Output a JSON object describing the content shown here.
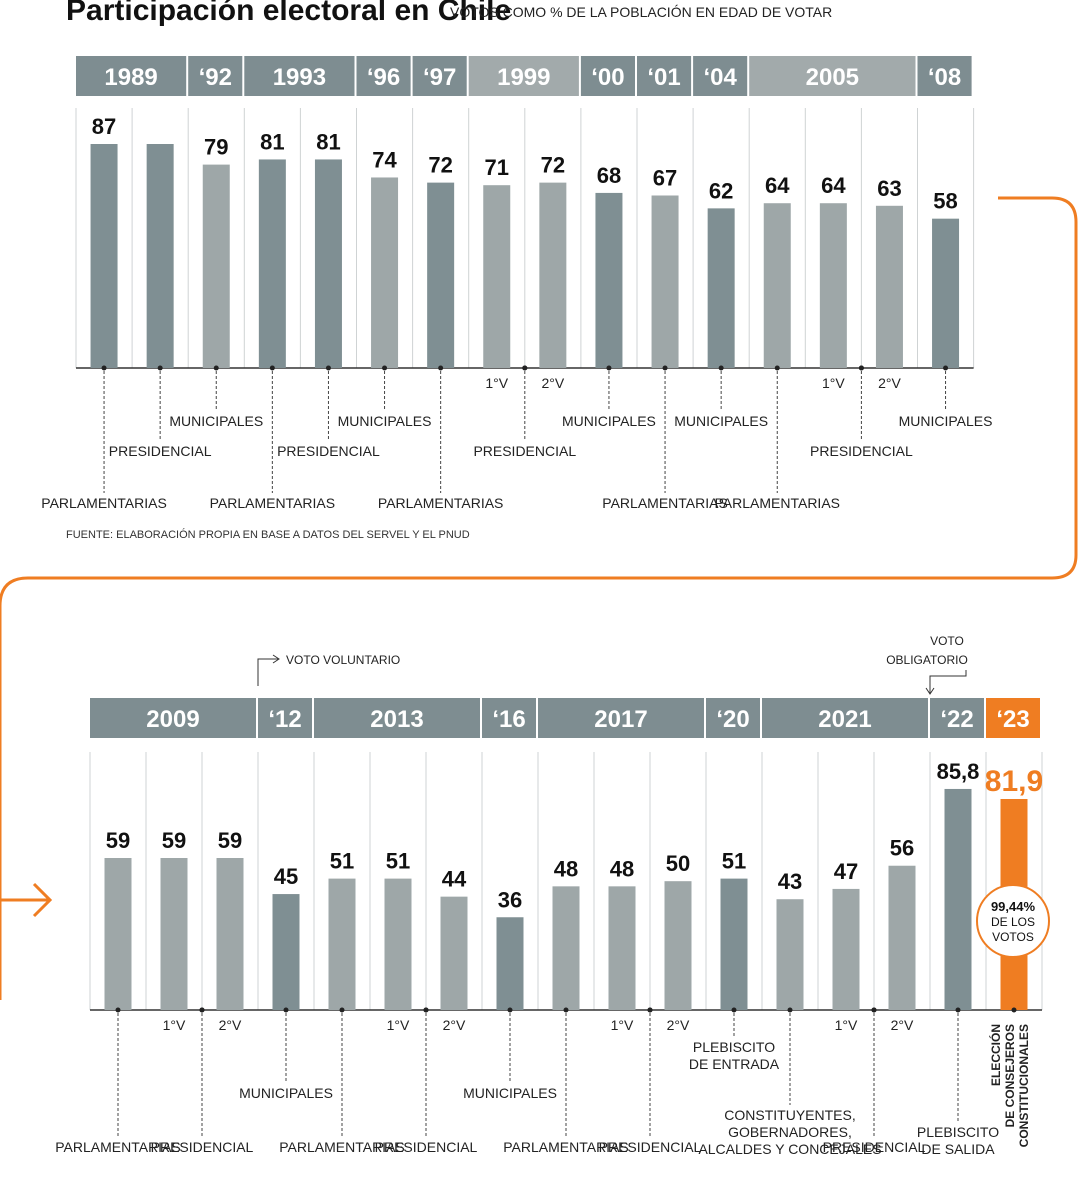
{
  "header": {
    "title": "Participación electoral en Chile",
    "subtitle": "VOTOS COMO % DE LA POBLACIÓN EN EDAD DE VOTAR"
  },
  "source": "FUENTE: ELABORACIÓN PROPIA EN BASE A DATOS DEL SERVEL Y EL PNUD",
  "notes": {
    "voto_voluntario": "VOTO VOLUNTARIO",
    "voto_obligatorio_1": "VOTO",
    "voto_obligatorio_2": "OBLIGATORIO",
    "circle_1": "99,44%",
    "circle_2": "DE LOS",
    "circle_3": "VOTOS"
  },
  "colors": {
    "bar_light": "#9ea7a8",
    "bar_dark": "#7f8f93",
    "year_light": "#a2aaab",
    "year_dark": "#7e8d91",
    "accent": "#ef7d22",
    "line": "#333333"
  },
  "chart_data": [
    {
      "type": "bar",
      "ylim": [
        0,
        100
      ],
      "years": [
        {
          "label": "1989",
          "span": [
            0,
            2
          ],
          "tone": "dark"
        },
        {
          "label": "‘92",
          "span": [
            2,
            3
          ],
          "tone": "dark"
        },
        {
          "label": "1993",
          "span": [
            3,
            5
          ],
          "tone": "dark"
        },
        {
          "label": "‘96",
          "span": [
            5,
            6
          ],
          "tone": "dark"
        },
        {
          "label": "‘97",
          "span": [
            6,
            7
          ],
          "tone": "dark"
        },
        {
          "label": "1999",
          "span": [
            7,
            9
          ],
          "tone": "light"
        },
        {
          "label": "‘00",
          "span": [
            9,
            10
          ],
          "tone": "dark"
        },
        {
          "label": "‘01",
          "span": [
            10,
            11
          ],
          "tone": "dark"
        },
        {
          "label": "‘04",
          "span": [
            11,
            12
          ],
          "tone": "dark"
        },
        {
          "label": "2005",
          "span": [
            12,
            15
          ],
          "tone": "light"
        },
        {
          "label": "‘08",
          "span": [
            15,
            16
          ],
          "tone": "dark"
        }
      ],
      "bars": [
        {
          "value": 87,
          "label": "87",
          "tone": "dark",
          "sub": "",
          "election": "PARLAMENTARIAS"
        },
        {
          "value": 87,
          "label": "",
          "tone": "dark",
          "sub": "",
          "election": "PRESIDENCIAL"
        },
        {
          "value": 79,
          "label": "79",
          "tone": "light",
          "sub": "",
          "election": "MUNICIPALES"
        },
        {
          "value": 81,
          "label": "81",
          "tone": "dark",
          "sub": "",
          "election": "PARLAMENTARIAS"
        },
        {
          "value": 81,
          "label": "81",
          "tone": "dark",
          "sub": "",
          "election": "PRESIDENCIAL"
        },
        {
          "value": 74,
          "label": "74",
          "tone": "light",
          "sub": "",
          "election": "MUNICIPALES"
        },
        {
          "value": 72,
          "label": "72",
          "tone": "dark",
          "sub": "",
          "election": "PARLAMENTARIAS"
        },
        {
          "value": 71,
          "label": "71",
          "tone": "light",
          "sub": "1°V",
          "election": "PRESIDENCIAL"
        },
        {
          "value": 72,
          "label": "72",
          "tone": "light",
          "sub": "2°V",
          "election": ""
        },
        {
          "value": 68,
          "label": "68",
          "tone": "dark",
          "sub": "",
          "election": "MUNICIPALES"
        },
        {
          "value": 67,
          "label": "67",
          "tone": "light",
          "sub": "",
          "election": "PARLAMENTARIAS"
        },
        {
          "value": 62,
          "label": "62",
          "tone": "dark",
          "sub": "",
          "election": "MUNICIPALES"
        },
        {
          "value": 64,
          "label": "64",
          "tone": "light",
          "sub": "",
          "election": "PARLAMENTARIAS"
        },
        {
          "value": 64,
          "label": "64",
          "tone": "light",
          "sub": "1°V",
          "election": "PRESIDENCIAL"
        },
        {
          "value": 63,
          "label": "63",
          "tone": "light",
          "sub": "2°V",
          "election": ""
        },
        {
          "value": 58,
          "label": "58",
          "tone": "dark",
          "sub": "",
          "election": "MUNICIPALES"
        }
      ]
    },
    {
      "type": "bar",
      "ylim": [
        0,
        100
      ],
      "years": [
        {
          "label": "2009",
          "span": [
            0,
            3
          ],
          "tone": "dark"
        },
        {
          "label": "‘12",
          "span": [
            3,
            4
          ],
          "tone": "dark"
        },
        {
          "label": "2013",
          "span": [
            4,
            7
          ],
          "tone": "dark"
        },
        {
          "label": "‘16",
          "span": [
            7,
            8
          ],
          "tone": "dark"
        },
        {
          "label": "2017",
          "span": [
            8,
            11
          ],
          "tone": "dark"
        },
        {
          "label": "‘20",
          "span": [
            11,
            12
          ],
          "tone": "dark"
        },
        {
          "label": "2021",
          "span": [
            12,
            15
          ],
          "tone": "dark"
        },
        {
          "label": "‘22",
          "span": [
            15,
            16
          ],
          "tone": "dark"
        },
        {
          "label": "‘23",
          "span": [
            16,
            17
          ],
          "tone": "accent"
        }
      ],
      "bars": [
        {
          "value": 59,
          "label": "59",
          "tone": "light",
          "sub": "",
          "election": "PARLAMENTARIAS"
        },
        {
          "value": 59,
          "label": "59",
          "tone": "light",
          "sub": "1°V",
          "election": "PRESIDENCIAL"
        },
        {
          "value": 59,
          "label": "59",
          "tone": "light",
          "sub": "2°V",
          "election": ""
        },
        {
          "value": 45,
          "label": "45",
          "tone": "dark",
          "sub": "",
          "election": "MUNICIPALES"
        },
        {
          "value": 51,
          "label": "51",
          "tone": "light",
          "sub": "",
          "election": "PARLAMENTARIAS"
        },
        {
          "value": 51,
          "label": "51",
          "tone": "light",
          "sub": "1°V",
          "election": "PRESIDENCIAL"
        },
        {
          "value": 44,
          "label": "44",
          "tone": "light",
          "sub": "2°V",
          "election": ""
        },
        {
          "value": 36,
          "label": "36",
          "tone": "dark",
          "sub": "",
          "election": "MUNICIPALES"
        },
        {
          "value": 48,
          "label": "48",
          "tone": "light",
          "sub": "",
          "election": "PARLAMENTARIAS"
        },
        {
          "value": 48,
          "label": "48",
          "tone": "light",
          "sub": "1°V",
          "election": "PRESIDENCIAL"
        },
        {
          "value": 50,
          "label": "50",
          "tone": "light",
          "sub": "2°V",
          "election": ""
        },
        {
          "value": 51,
          "label": "51",
          "tone": "dark",
          "sub": "",
          "election": "PLEBISCITO DE ENTRADA"
        },
        {
          "value": 43,
          "label": "43",
          "tone": "light",
          "sub": "",
          "election": "CONSTITUYENTES, GOBERNADORES, ALCALDES Y CONCEJALES"
        },
        {
          "value": 47,
          "label": "47",
          "tone": "light",
          "sub": "1°V",
          "election": "PRESIDENCIAL"
        },
        {
          "value": 56,
          "label": "56",
          "tone": "light",
          "sub": "2°V",
          "election": ""
        },
        {
          "value": 85.8,
          "label": "85,8",
          "tone": "dark",
          "sub": "",
          "election": "PLEBISCITO DE SALIDA"
        },
        {
          "value": 81.9,
          "label": "81,9",
          "tone": "accent",
          "sub": "",
          "election": "ELECCIÓN DE CONSEJEROS CONSTITUCIONALES"
        }
      ]
    }
  ]
}
